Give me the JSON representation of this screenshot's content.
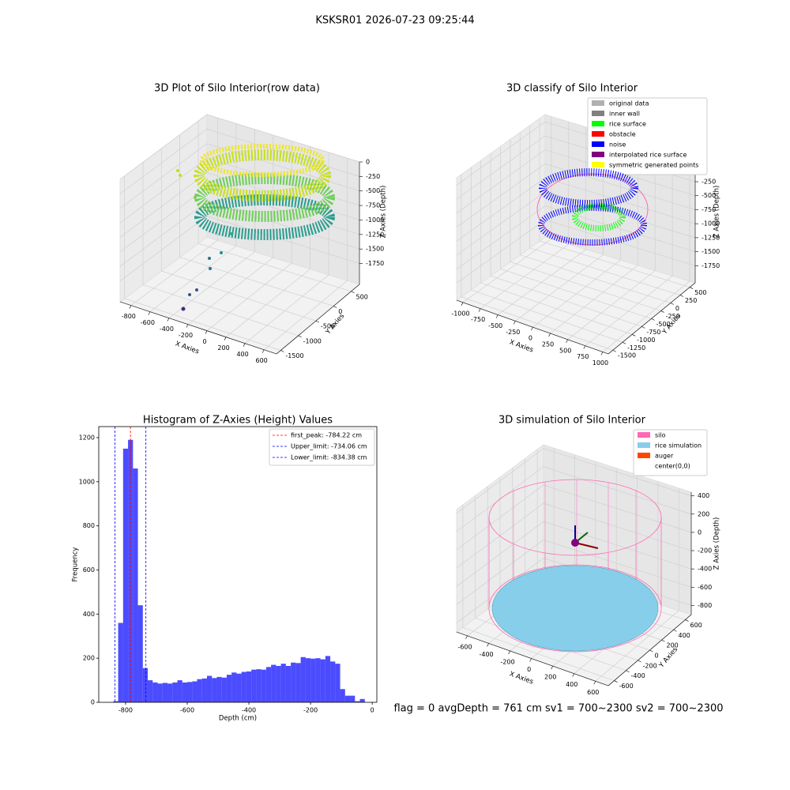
{
  "title": "KSKSR01 2026-07-23 09:25:44",
  "footer": "flag = 0     avgDepth = 761 cm  sv1 = 700~2300  sv2 = 700~2300",
  "chart_data": [
    {
      "type": "scatter3d",
      "title": "3D Plot of Silo Interior(row data)",
      "xlabel": "X Axies",
      "ylabel": "Y Axies",
      "zlabel": "Z Axies (Depth)",
      "xlim": [
        -915,
        732
      ],
      "xticks": [
        -800,
        -600,
        -400,
        -200,
        0,
        200,
        400,
        600
      ],
      "ylim": [
        -1620,
        735
      ],
      "yticks": [
        -1500,
        -1000,
        -500,
        0,
        500
      ],
      "zlim": [
        -2110,
        0
      ],
      "zticks": [
        0,
        -250,
        -500,
        -750,
        -1000,
        -1250,
        -1500,
        -1750
      ]
    },
    {
      "type": "scatter3d",
      "title": "3D classify of Silo Interior",
      "xlabel": "X Axies",
      "ylabel": "Y Axies",
      "zlabel": "Z Axies (Depth)",
      "xlim": [
        -1090,
        1080
      ],
      "xticks": [
        -1000,
        -750,
        -500,
        -250,
        0,
        250,
        500,
        750,
        1000
      ],
      "ylim": [
        -1620,
        640
      ],
      "yticks": [
        -1500,
        -1250,
        -1000,
        -750,
        -500,
        -250,
        0,
        250,
        500
      ],
      "zlim": [
        -2056,
        131
      ],
      "zticks": [
        0,
        -250,
        -500,
        -750,
        -1000,
        -1250,
        -1500,
        -1750
      ],
      "legend": [
        {
          "name": "original data",
          "color": "#b0b0b0"
        },
        {
          "name": "inner wall",
          "color": "#808080"
        },
        {
          "name": "rice surface",
          "color": "#00ff00"
        },
        {
          "name": "obstacle",
          "color": "#ff0000"
        },
        {
          "name": "noise",
          "color": "#0000ff"
        },
        {
          "name": "interpolated rice surface",
          "color": "#800080"
        },
        {
          "name": "symmetric generated points",
          "color": "#ffff00"
        }
      ]
    },
    {
      "type": "histogram",
      "title": "Histogram of Z-Axies (Height) Values",
      "xlabel": "Depth (cm)",
      "ylabel": "Frequency",
      "color": "#0000ff",
      "bins": [
        -840,
        -824,
        -808,
        -792,
        -776,
        -760,
        -744,
        -728,
        -712,
        -696,
        -680,
        -664,
        -648,
        -632,
        -616,
        -600,
        -584,
        -568,
        -552,
        -536,
        -520,
        -504,
        -488,
        -472,
        -456,
        -440,
        -424,
        -408,
        -392,
        -376,
        -360,
        -344,
        -328,
        -312,
        -296,
        -280,
        -264,
        -248,
        -232,
        -216,
        -200,
        -184,
        -168,
        -152,
        -136,
        -120,
        -104,
        -88,
        -72,
        -56,
        -40,
        -24
      ],
      "values": [
        5,
        360,
        1150,
        1190,
        1060,
        440,
        155,
        100,
        90,
        85,
        88,
        85,
        90,
        100,
        90,
        92,
        95,
        105,
        108,
        120,
        110,
        115,
        112,
        125,
        135,
        130,
        138,
        140,
        148,
        150,
        148,
        160,
        170,
        165,
        175,
        165,
        180,
        178,
        205,
        200,
        198,
        200,
        195,
        210,
        185,
        175,
        60,
        30,
        30,
        5,
        15
      ],
      "xlim": [
        -887,
        15
      ],
      "xticks": [
        -800,
        -600,
        -400,
        -200,
        0
      ],
      "ylim": [
        0,
        1250
      ],
      "yticks": [
        0,
        200,
        400,
        600,
        800,
        1000,
        1200
      ],
      "lines": [
        {
          "label": "first_peak: -784.22 cm",
          "value": -784.22,
          "color": "#ff0000"
        },
        {
          "label": "Upper_limit: -734.06 cm",
          "value": -734.06,
          "color": "#0000ff"
        },
        {
          "label": "Lower_limit: -834.38 cm",
          "value": -834.38,
          "color": "#0000ff"
        }
      ]
    },
    {
      "type": "surface3d",
      "title": "3D simulation of Silo Interior",
      "xlabel": "X Axies",
      "ylabel": "Y Axies",
      "zlabel": "Z Axies (Depth)",
      "xlim": [
        -700,
        720
      ],
      "xticks": [
        -600,
        -400,
        -200,
        0,
        200,
        400,
        600
      ],
      "ylim": [
        -700,
        700
      ],
      "yticks": [
        -600,
        -400,
        -200,
        0,
        200,
        400,
        600
      ],
      "zlim": [
        -900,
        440
      ],
      "zticks": [
        400,
        200,
        0,
        -200,
        -400,
        -600,
        -800
      ],
      "legend": [
        {
          "name": "silo",
          "color": "#ff69b4"
        },
        {
          "name": "rice simulation",
          "color": "#87ceeb"
        },
        {
          "name": "auger",
          "color": "#ff4500"
        },
        {
          "name": "center(0,0)",
          "color": "#ffffff"
        }
      ]
    }
  ]
}
